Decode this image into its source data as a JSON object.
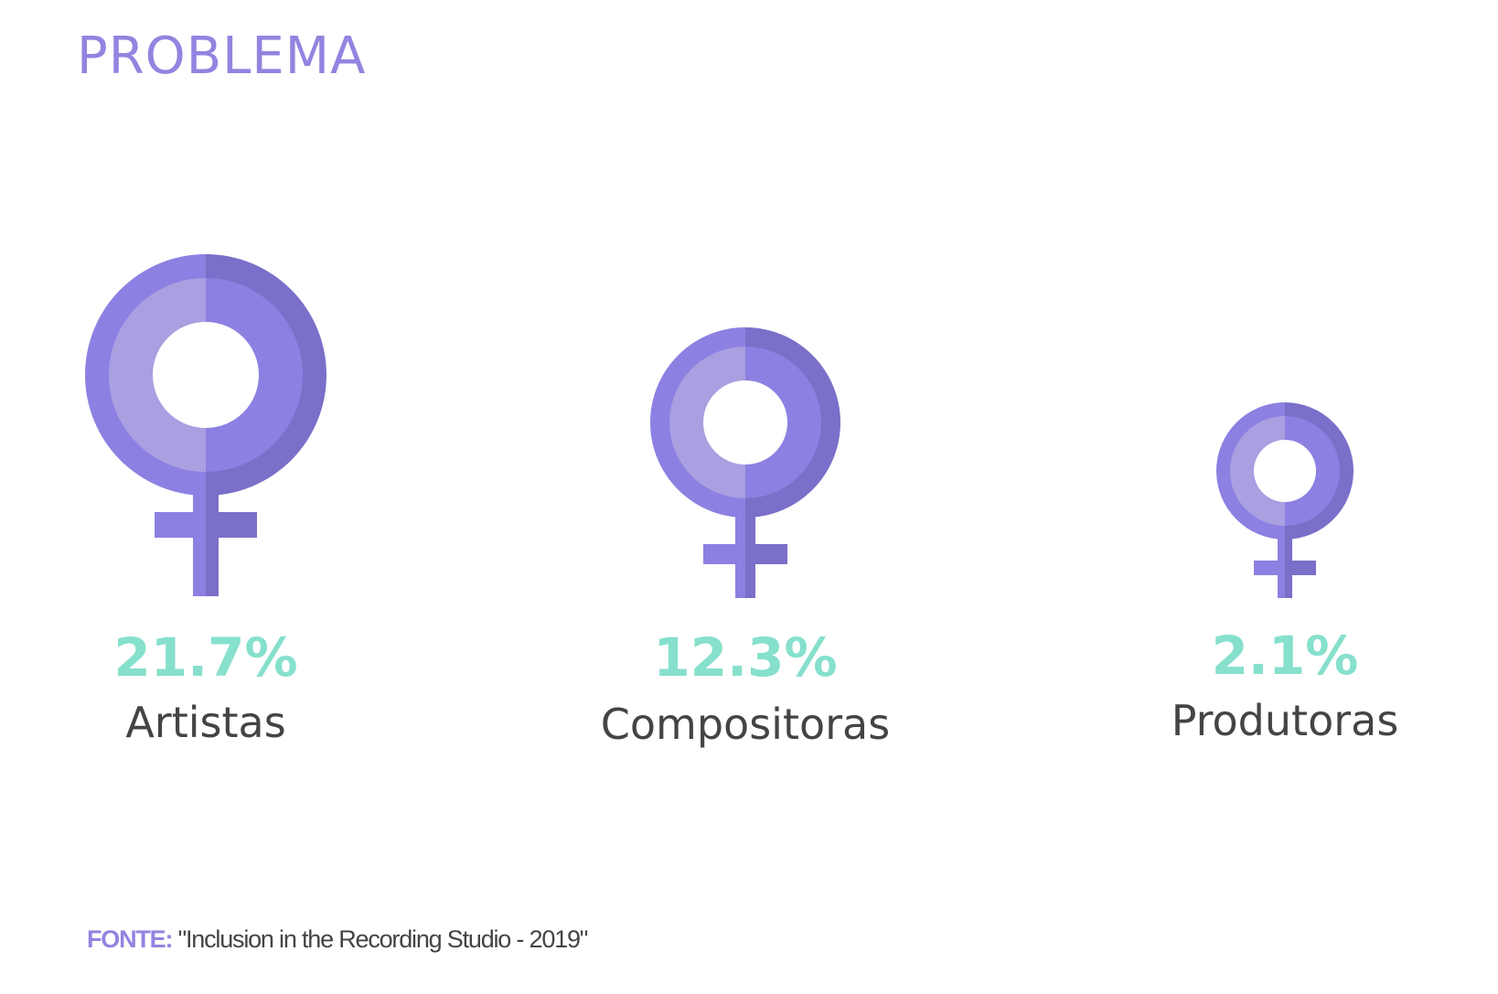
{
  "title": "PROBLEMA",
  "colors": {
    "accent": "#9284e0",
    "percent": "#86e0cc",
    "symbol_light": "#a99fe1",
    "symbol_mid": "#8c80e2",
    "symbol_dark": "#7a6fc9",
    "text": "#444444"
  },
  "stats": [
    {
      "percent": "21.7%",
      "label": "Artistas",
      "icon": "female-symbol-icon"
    },
    {
      "percent": "12.3%",
      "label": "Compositoras",
      "icon": "female-symbol-icon"
    },
    {
      "percent": "2.1%",
      "label": "Produtoras",
      "icon": "female-symbol-icon"
    }
  ],
  "source": {
    "label": "FONTE:",
    "text": " \"Inclusion in the Recording Studio - 2019\""
  }
}
